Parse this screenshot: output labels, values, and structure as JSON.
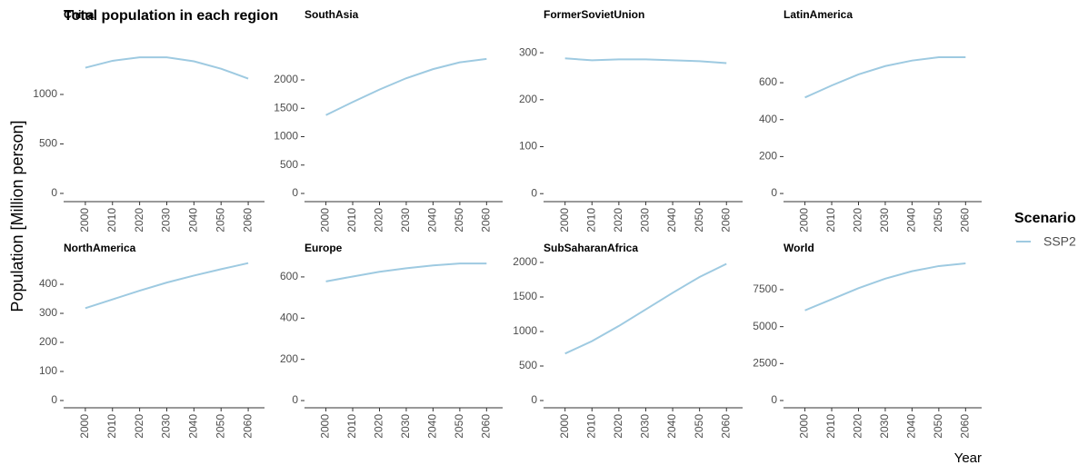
{
  "title": "Total population in each region",
  "y_label": "Population [Million person]",
  "x_label": "Year",
  "legend_title": "Scenario",
  "chart_data": [
    {
      "type": "line",
      "title": "China",
      "x": [
        2000,
        2010,
        2020,
        2030,
        2040,
        2050,
        2060
      ],
      "xlim": [
        1992,
        2066
      ],
      "xticks": [
        2000,
        2010,
        2020,
        2030,
        2040,
        2050,
        2060
      ],
      "ylim": [
        -83,
        1725
      ],
      "yticks": [
        0,
        500,
        1000
      ],
      "series": [
        {
          "name": "SSP2",
          "color": "#9ecae1",
          "values": [
            1270,
            1340,
            1375,
            1375,
            1335,
            1260,
            1160
          ]
        }
      ]
    },
    {
      "type": "line",
      "title": "SouthAsia",
      "x": [
        2000,
        2010,
        2020,
        2030,
        2040,
        2050,
        2060
      ],
      "xlim": [
        1992,
        2066
      ],
      "xticks": [
        2000,
        2010,
        2020,
        2030,
        2040,
        2050,
        2060
      ],
      "ylim": [
        -144,
        3008
      ],
      "yticks": [
        0,
        500,
        1000,
        1500,
        2000
      ],
      "series": [
        {
          "name": "SSP2",
          "color": "#9ecae1",
          "values": [
            1380,
            1610,
            1830,
            2030,
            2190,
            2310,
            2370
          ]
        }
      ]
    },
    {
      "type": "line",
      "title": "FormerSovietUnion",
      "x": [
        2000,
        2010,
        2020,
        2030,
        2040,
        2050,
        2060
      ],
      "xlim": [
        1992,
        2066
      ],
      "xticks": [
        2000,
        2010,
        2020,
        2030,
        2040,
        2050,
        2060
      ],
      "ylim": [
        -17,
        364
      ],
      "yticks": [
        0,
        100,
        200,
        300
      ],
      "series": [
        {
          "name": "SSP2",
          "color": "#9ecae1",
          "values": [
            288,
            284,
            286,
            286,
            284,
            282,
            278
          ]
        }
      ]
    },
    {
      "type": "line",
      "title": "LatinAmerica",
      "x": [
        2000,
        2010,
        2020,
        2030,
        2040,
        2050,
        2060
      ],
      "xlim": [
        1992,
        2066
      ],
      "xticks": [
        2000,
        2010,
        2020,
        2030,
        2040,
        2050,
        2060
      ],
      "ylim": [
        -44,
        925
      ],
      "yticks": [
        0,
        200,
        400,
        600
      ],
      "series": [
        {
          "name": "SSP2",
          "color": "#9ecae1",
          "values": [
            520,
            585,
            645,
            690,
            720,
            738,
            738
          ]
        }
      ]
    },
    {
      "type": "line",
      "title": "NorthAmerica",
      "x": [
        2000,
        2010,
        2020,
        2030,
        2040,
        2050,
        2060
      ],
      "xlim": [
        1992,
        2066
      ],
      "xticks": [
        2000,
        2010,
        2020,
        2030,
        2040,
        2050,
        2060
      ],
      "ylim": [
        -25,
        497
      ],
      "yticks": [
        0,
        100,
        200,
        300,
        400
      ],
      "series": [
        {
          "name": "SSP2",
          "color": "#9ecae1",
          "values": [
            318,
            348,
            378,
            406,
            430,
            452,
            473
          ]
        }
      ]
    },
    {
      "type": "line",
      "title": "Europe",
      "x": [
        2000,
        2010,
        2020,
        2030,
        2040,
        2050,
        2060
      ],
      "xlim": [
        1992,
        2066
      ],
      "xticks": [
        2000,
        2010,
        2020,
        2030,
        2040,
        2050,
        2060
      ],
      "ylim": [
        -35,
        701
      ],
      "yticks": [
        0,
        200,
        400,
        600
      ],
      "series": [
        {
          "name": "SSP2",
          "color": "#9ecae1",
          "values": [
            578,
            602,
            625,
            642,
            656,
            665,
            665
          ]
        }
      ]
    },
    {
      "type": "line",
      "title": "SubSaharanAfrica",
      "x": [
        2000,
        2010,
        2020,
        2030,
        2040,
        2050,
        2060
      ],
      "xlim": [
        1992,
        2066
      ],
      "xticks": [
        2000,
        2010,
        2020,
        2030,
        2040,
        2050,
        2060
      ],
      "ylim": [
        -105,
        2092
      ],
      "yticks": [
        0,
        500,
        1000,
        1500,
        2000
      ],
      "series": [
        {
          "name": "SSP2",
          "color": "#9ecae1",
          "values": [
            680,
            860,
            1080,
            1320,
            1560,
            1790,
            1980
          ]
        }
      ]
    },
    {
      "type": "line",
      "title": "World",
      "x": [
        2000,
        2010,
        2020,
        2030,
        2040,
        2050,
        2060
      ],
      "xlim": [
        1992,
        2066
      ],
      "xticks": [
        2000,
        2010,
        2020,
        2030,
        2040,
        2050,
        2060
      ],
      "ylim": [
        -492,
        9773
      ],
      "yticks": [
        0,
        2500,
        5000,
        7500
      ],
      "series": [
        {
          "name": "SSP2",
          "color": "#9ecae1",
          "values": [
            6100,
            6850,
            7600,
            8250,
            8750,
            9100,
            9280
          ]
        }
      ]
    }
  ]
}
